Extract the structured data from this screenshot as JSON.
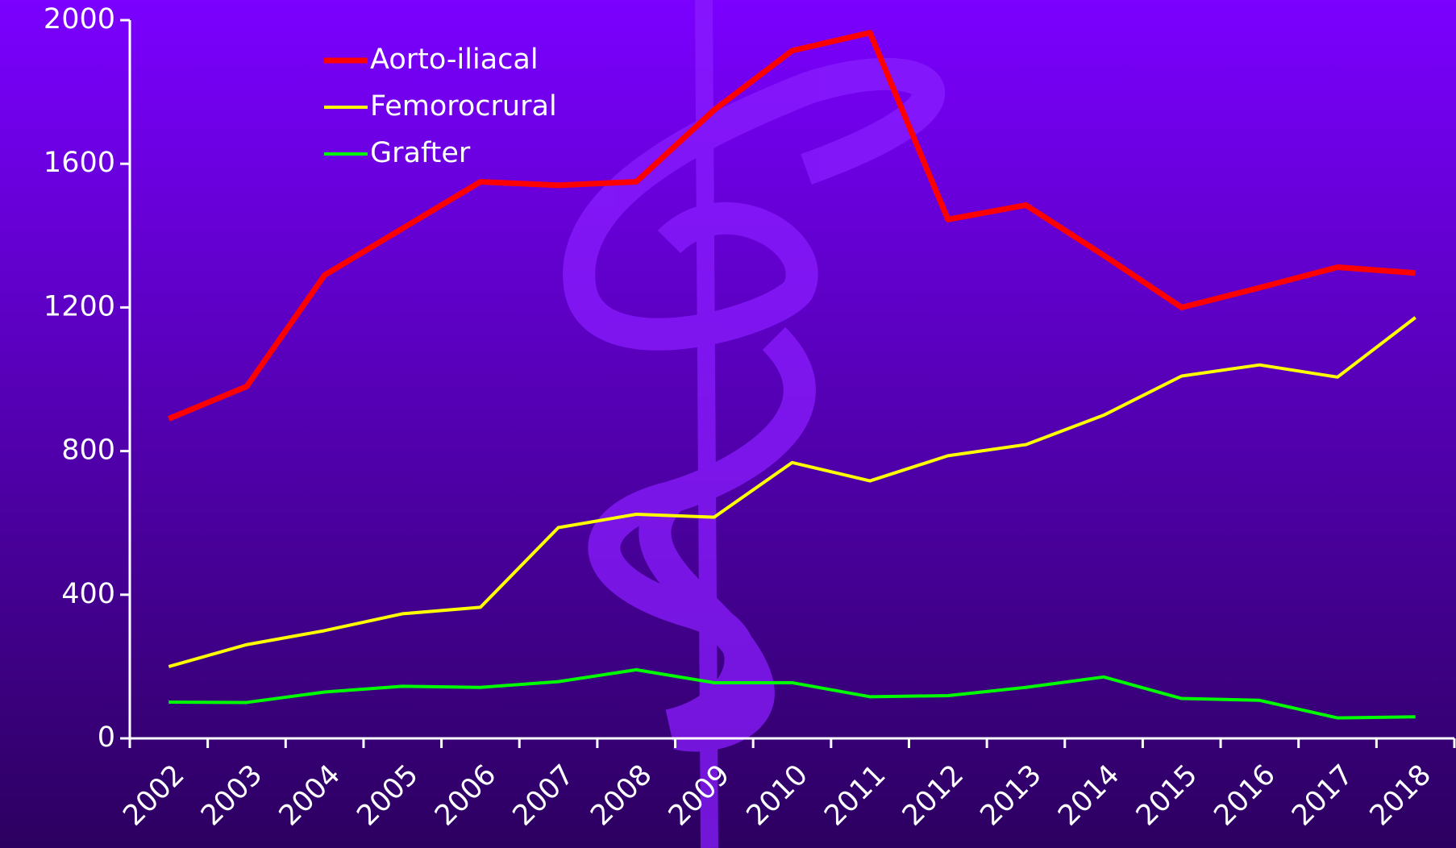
{
  "chart_data": {
    "type": "line",
    "categories": [
      "2002",
      "2003",
      "2004",
      "2005",
      "2006",
      "2007",
      "2008",
      "2009",
      "2010",
      "2011",
      "2012",
      "2013",
      "2014",
      "2015",
      "2016",
      "2017",
      "2018"
    ],
    "series": [
      {
        "name": "Aorto-iliacal",
        "color": "#ff0000",
        "values": [
          890,
          980,
          1290,
          1420,
          1550,
          1540,
          1550,
          1750,
          1915,
          1965,
          1445,
          1485,
          1345,
          1200,
          1255,
          1312,
          1296
        ]
      },
      {
        "name": "Femorocrural",
        "color": "#ffff00",
        "values": [
          200,
          261,
          300,
          347,
          365,
          587,
          624,
          616,
          768,
          717,
          787,
          818,
          900,
          1009,
          1040,
          1006,
          1172
        ]
      },
      {
        "name": "Grafter",
        "color": "#00ff00",
        "values": [
          101,
          100,
          129,
          145,
          142,
          158,
          191,
          155,
          155,
          116,
          119,
          142,
          171,
          111,
          106,
          57,
          60
        ]
      }
    ],
    "ylim": [
      0,
      2000
    ],
    "yticks": [
      0,
      400,
      800,
      1200,
      1600,
      2000
    ]
  }
}
